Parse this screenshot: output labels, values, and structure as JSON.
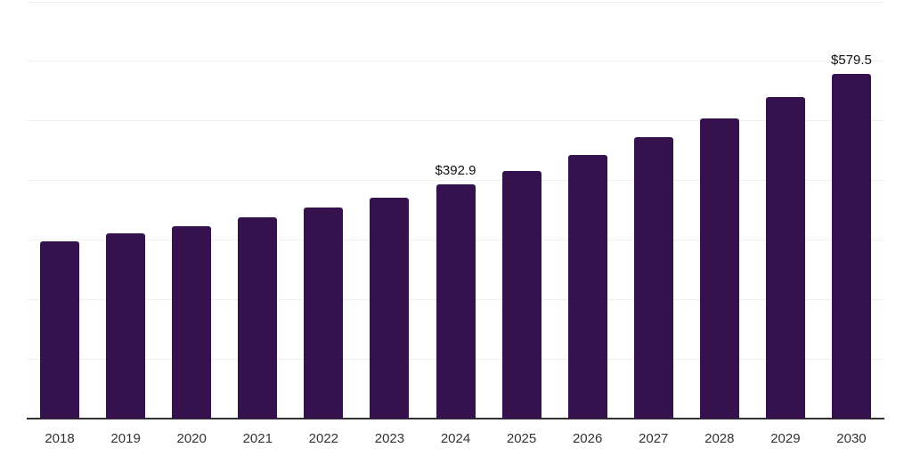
{
  "chart_data": {
    "type": "bar",
    "title": "",
    "xlabel": "",
    "ylabel": "",
    "categories": [
      "2018",
      "2019",
      "2020",
      "2021",
      "2022",
      "2023",
      "2024",
      "2025",
      "2026",
      "2027",
      "2028",
      "2029",
      "2030"
    ],
    "values": [
      297.2,
      310.6,
      322.6,
      338.0,
      354.2,
      370.5,
      392.9,
      416.3,
      442.3,
      472.2,
      503.6,
      539.9,
      579.5
    ],
    "value_labels": [
      "",
      "",
      "",
      "",
      "",
      "",
      "$392.9",
      "",
      "",
      "",
      "",
      "",
      "$579.5"
    ],
    "ylim": [
      0,
      700
    ],
    "grid_step": 100,
    "grid": "horizontal",
    "y_tick_labels_shown": false,
    "legend": "none",
    "colors": {
      "bar": "#35114E",
      "gridline": "#f0f0f0",
      "axis_line": "#333333",
      "tick_label": "#333333",
      "value_label": "#111111"
    }
  }
}
